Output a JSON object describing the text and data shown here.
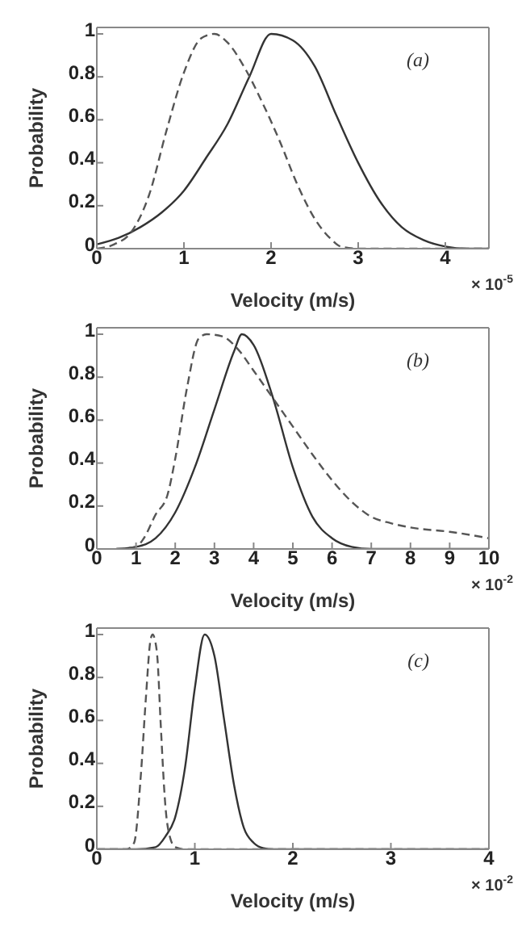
{
  "chart_data": [
    {
      "type": "line",
      "xlabel": "Velocity (m/s)",
      "ylabel": "Probability",
      "xlim": [
        0,
        4.5
      ],
      "xticks": [
        0,
        1,
        2,
        3,
        4
      ],
      "ylim": [
        0,
        1.03
      ],
      "yticks": [
        0,
        0.2,
        0.4,
        0.6,
        0.8,
        1
      ],
      "grid": false,
      "legend": false,
      "marker": "none",
      "annotations": [
        "(a)",
        "× 10$^{-5}$"
      ],
      "series": [
        {
          "color": "#333333",
          "line_style": "solid",
          "x": [
            0,
            0.25,
            0.5,
            0.75,
            1,
            1.25,
            1.5,
            1.75,
            2,
            2.25,
            2.5,
            2.75,
            3,
            3.25,
            3.5,
            3.75,
            4,
            4.25,
            4.5
          ],
          "values": [
            0.02,
            0.05,
            0.1,
            0.17,
            0.27,
            0.42,
            0.58,
            0.8,
            1,
            0.97,
            0.85,
            0.62,
            0.4,
            0.22,
            0.1,
            0.04,
            0.01,
            0,
            0
          ]
        },
        {
          "color": "#555555",
          "line_style": "dashed",
          "x": [
            0,
            0.2,
            0.4,
            0.6,
            0.8,
            1,
            1.2,
            1.35,
            1.5,
            1.7,
            1.9,
            2.1,
            2.3,
            2.5,
            2.7,
            2.8,
            3,
            4.5
          ],
          "values": [
            0,
            0.02,
            0.08,
            0.25,
            0.55,
            0.82,
            0.98,
            1,
            0.96,
            0.84,
            0.68,
            0.5,
            0.3,
            0.14,
            0.04,
            0.01,
            0,
            0
          ]
        }
      ]
    },
    {
      "type": "line",
      "xlabel": "Velocity (m/s)",
      "ylabel": "Probability",
      "xlim": [
        0,
        10
      ],
      "xticks": [
        0,
        1,
        2,
        3,
        4,
        5,
        6,
        7,
        8,
        9,
        10
      ],
      "ylim": [
        0,
        1.03
      ],
      "yticks": [
        0,
        0.2,
        0.4,
        0.6,
        0.8,
        1
      ],
      "grid": false,
      "legend": false,
      "marker": "none",
      "annotations": [
        "(b)",
        "× 10$^{-2}$"
      ],
      "series": [
        {
          "color": "#333333",
          "line_style": "solid",
          "x": [
            0.5,
            1,
            1.5,
            2,
            2.5,
            3,
            3.5,
            3.7,
            4,
            4.5,
            5,
            5.5,
            6,
            6.5,
            7,
            10
          ],
          "values": [
            0,
            0.01,
            0.05,
            0.17,
            0.38,
            0.65,
            0.92,
            1,
            0.95,
            0.7,
            0.38,
            0.15,
            0.05,
            0.01,
            0,
            0
          ]
        },
        {
          "color": "#555555",
          "line_style": "dashed",
          "x": [
            0.5,
            1,
            1.2,
            1.5,
            1.8,
            2,
            2.3,
            2.6,
            2.8,
            3.2,
            3.6,
            4,
            4.5,
            5,
            5.5,
            6,
            6.5,
            7,
            7.5,
            8,
            9,
            10
          ],
          "values": [
            0,
            0.01,
            0.05,
            0.16,
            0.25,
            0.42,
            0.75,
            0.98,
            1,
            0.99,
            0.93,
            0.83,
            0.7,
            0.57,
            0.44,
            0.32,
            0.22,
            0.15,
            0.12,
            0.1,
            0.08,
            0.05
          ]
        }
      ]
    },
    {
      "type": "line",
      "xlabel": "Velocity (m/s)",
      "ylabel": "Probability",
      "xlim": [
        0,
        4
      ],
      "xticks": [
        0,
        1,
        2,
        3,
        4
      ],
      "ylim": [
        0,
        1.03
      ],
      "yticks": [
        0,
        0.2,
        0.4,
        0.6,
        0.8,
        1
      ],
      "grid": false,
      "legend": false,
      "marker": "none",
      "annotations": [
        "(c)",
        "× 10$^{-2}$"
      ],
      "series": [
        {
          "color": "#333333",
          "line_style": "solid",
          "x": [
            0,
            0.4,
            0.6,
            0.7,
            0.8,
            0.9,
            1,
            1.1,
            1.2,
            1.3,
            1.4,
            1.5,
            1.6,
            1.7,
            1.8,
            4
          ],
          "values": [
            0,
            0,
            0.01,
            0.06,
            0.15,
            0.38,
            0.75,
            1,
            0.9,
            0.6,
            0.3,
            0.1,
            0.03,
            0.005,
            0,
            0
          ]
        },
        {
          "color": "#555555",
          "line_style": "dashed",
          "x": [
            0,
            0.3,
            0.38,
            0.45,
            0.5,
            0.55,
            0.57,
            0.59,
            0.62,
            0.65,
            0.7,
            0.75,
            0.8,
            0.9,
            4
          ],
          "values": [
            0,
            0,
            0.03,
            0.35,
            0.7,
            0.98,
            1,
            0.98,
            0.88,
            0.6,
            0.2,
            0.05,
            0.01,
            0,
            0
          ]
        }
      ]
    }
  ]
}
